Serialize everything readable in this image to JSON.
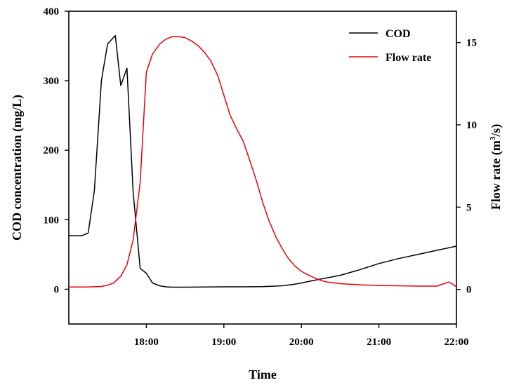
{
  "chart_data": {
    "type": "line",
    "title": "",
    "xlabel": "Time",
    "ylabel_left": "COD concentration (mg/L)",
    "ylabel_right": {
      "main": "Flow rate (m",
      "sup": "3",
      "end": "/s)"
    },
    "x_unit": "hours",
    "xlim": [
      17.0,
      22.0
    ],
    "ylim_left": [
      -50,
      400
    ],
    "ylim_right": [
      -2.1,
      16.9
    ],
    "x_ticks": [
      18,
      19,
      20,
      21,
      22
    ],
    "x_tick_labels": [
      "18:00",
      "19:00",
      "20:00",
      "21:00",
      "22:00"
    ],
    "y_left_ticks": [
      0,
      100,
      200,
      300,
      400
    ],
    "y_left_tick_labels": [
      "0",
      "100",
      "200",
      "300",
      "400"
    ],
    "y_right_ticks": [
      0,
      5,
      10,
      15
    ],
    "y_right_tick_labels": [
      "0",
      "5",
      "10",
      "15"
    ],
    "legend_position": "top-right",
    "series": [
      {
        "name": "COD",
        "axis": "left",
        "color": "#000000",
        "x": [
          17.0,
          17.17,
          17.25,
          17.33,
          17.42,
          17.5,
          17.6,
          17.67,
          17.75,
          17.83,
          17.92,
          18.0,
          18.08,
          18.17,
          18.25,
          18.33,
          18.5,
          18.75,
          19.0,
          19.25,
          19.5,
          19.75,
          19.9,
          20.0,
          20.17,
          20.5,
          20.75,
          21.0,
          21.25,
          21.5,
          21.75,
          22.0
        ],
        "values": [
          77,
          77,
          81,
          142,
          300,
          353,
          365,
          293,
          318,
          140,
          30,
          23,
          9,
          5,
          3.5,
          3,
          3,
          3.2,
          3.5,
          3.5,
          3.7,
          5,
          7,
          9,
          13,
          20,
          28,
          37,
          44,
          50,
          56,
          62
        ]
      },
      {
        "name": "Flow rate",
        "axis": "right",
        "color": "#e8000b",
        "x": [
          17.0,
          17.25,
          17.42,
          17.5,
          17.58,
          17.67,
          17.75,
          17.83,
          17.92,
          18.0,
          18.08,
          18.17,
          18.25,
          18.33,
          18.42,
          18.5,
          18.58,
          18.67,
          18.75,
          18.83,
          18.92,
          19.0,
          19.08,
          19.17,
          19.25,
          19.33,
          19.42,
          19.5,
          19.58,
          19.67,
          19.75,
          19.83,
          19.92,
          20.0,
          20.08,
          20.17,
          20.25,
          20.33,
          20.5,
          20.75,
          21.0,
          21.25,
          21.5,
          21.75,
          21.9,
          21.96,
          22.0
        ],
        "values": [
          0.15,
          0.15,
          0.18,
          0.25,
          0.4,
          0.8,
          1.5,
          3.0,
          6.5,
          13.2,
          14.3,
          14.9,
          15.2,
          15.35,
          15.35,
          15.3,
          15.1,
          14.8,
          14.4,
          13.9,
          13.0,
          11.8,
          10.6,
          9.7,
          9.0,
          7.9,
          6.6,
          5.3,
          4.2,
          3.2,
          2.5,
          1.9,
          1.4,
          1.1,
          0.9,
          0.7,
          0.55,
          0.45,
          0.35,
          0.28,
          0.24,
          0.22,
          0.2,
          0.2,
          0.45,
          0.3,
          0.15
        ]
      }
    ]
  }
}
